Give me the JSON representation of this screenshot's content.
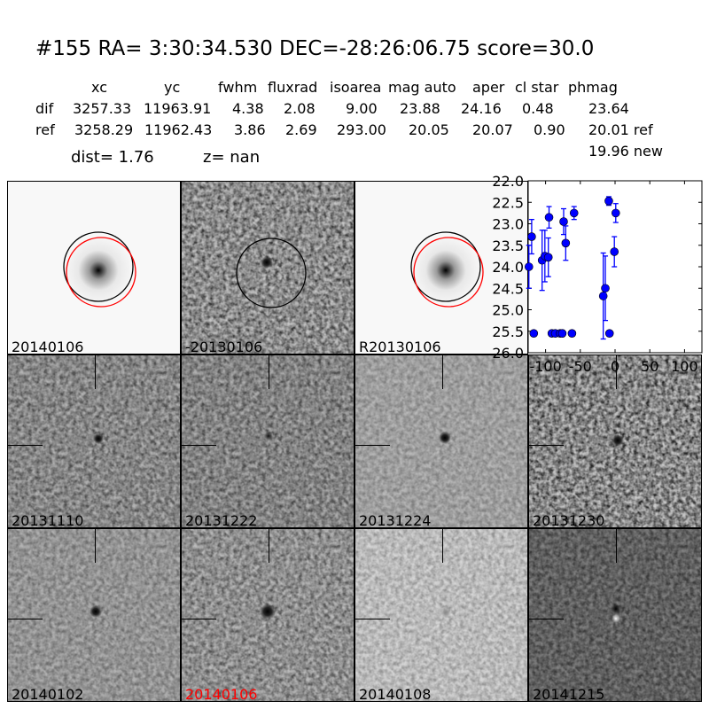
{
  "header": {
    "title": "#155   RA= 3:30:34.530 DEC=-28:26:06.75      score=30.0",
    "columns": [
      "xc",
      "yc",
      "fwhm",
      "fluxrad",
      "isoarea",
      "mag auto",
      "aper",
      "cl star",
      "phmag"
    ],
    "dif": {
      "label": "dif",
      "values": [
        "3257.33",
        "11963.91",
        "4.38",
        "2.08",
        "9.00",
        "23.88",
        "24.16",
        "0.48",
        "23.64"
      ]
    },
    "ref": {
      "label": "ref",
      "values": [
        "3258.29",
        "11962.43",
        "3.86",
        "2.69",
        "293.00",
        "20.05",
        "20.07",
        "0.90",
        "20.01 ref"
      ]
    },
    "new_phmag": "19.96 new",
    "dist": "dist=  1.76",
    "z": "z=   nan"
  },
  "stamps": [
    {
      "label": "20140106"
    },
    {
      "label": "-20130106"
    },
    {
      "label": "R20130106"
    },
    {
      "label": "20131110"
    },
    {
      "label": "20131222"
    },
    {
      "label": "20131224"
    },
    {
      "label": "20131230"
    },
    {
      "label": "20140102"
    },
    {
      "label": "20140106",
      "color": "#ff0000"
    },
    {
      "label": "20140108"
    },
    {
      "label": "20141215"
    }
  ],
  "chart_data": {
    "type": "scatter",
    "title": "",
    "xlabel": "",
    "ylabel": "",
    "xlim": [
      -125,
      125
    ],
    "ylim": [
      26.0,
      22.0
    ],
    "y_inverted": true,
    "xticks": [
      "-100",
      "-50",
      "0",
      "50",
      "100"
    ],
    "xtick_values": [
      -100,
      -50,
      0,
      50,
      100
    ],
    "yticks": [
      "22.0",
      "22.5",
      "23.0",
      "23.5",
      "24.0",
      "24.5",
      "25.0",
      "25.5",
      "26.0"
    ],
    "ytick_values": [
      22.0,
      22.5,
      23.0,
      23.5,
      24.0,
      24.5,
      25.0,
      25.5,
      26.0
    ],
    "marker_color": "#0000ff",
    "points": [
      {
        "x": -124,
        "y": 24.0,
        "err": 0.5
      },
      {
        "x": -120,
        "y": 23.3,
        "err": 0.4
      },
      {
        "x": -117,
        "y": 25.55,
        "err": 0.05
      },
      {
        "x": -105,
        "y": 23.85,
        "err": 0.7
      },
      {
        "x": -101,
        "y": 23.75,
        "err": 0.6
      },
      {
        "x": -96,
        "y": 23.78,
        "err": 0.45
      },
      {
        "x": -95,
        "y": 22.85,
        "err": 0.25
      },
      {
        "x": -91,
        "y": 25.55,
        "err": 0.05
      },
      {
        "x": -86,
        "y": 25.55,
        "err": 0.05
      },
      {
        "x": -79,
        "y": 25.55,
        "err": 0.05
      },
      {
        "x": -76,
        "y": 25.55,
        "err": 0.05
      },
      {
        "x": -74,
        "y": 22.95,
        "err": 0.3
      },
      {
        "x": -71,
        "y": 23.45,
        "err": 0.4
      },
      {
        "x": -62,
        "y": 25.55,
        "err": 0.05
      },
      {
        "x": -59,
        "y": 22.75,
        "err": 0.15
      },
      {
        "x": -17,
        "y": 24.68,
        "err": 1.0
      },
      {
        "x": -14,
        "y": 24.5,
        "err": 0.75
      },
      {
        "x": -9,
        "y": 22.47,
        "err": 0.1
      },
      {
        "x": -8,
        "y": 25.55,
        "err": 0.05
      },
      {
        "x": -1,
        "y": 23.65,
        "err": 0.35
      },
      {
        "x": 1,
        "y": 22.75,
        "err": 0.22
      }
    ]
  }
}
